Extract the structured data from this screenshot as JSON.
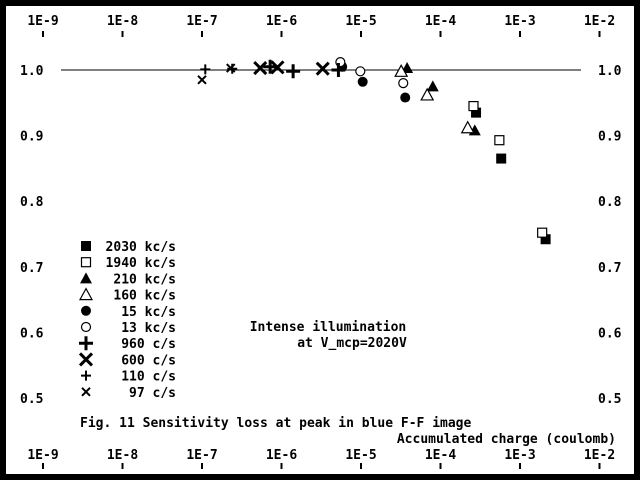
{
  "chart_data": {
    "type": "scatter",
    "title": "Fig. 11  Sensitivity loss at peak in blue F-F image",
    "xlabel": "Accumulated charge  (coulomb)",
    "ylabel": "",
    "xscale": "log",
    "xlim": [
      1e-09,
      0.01
    ],
    "ylim": [
      0.45,
      1.05
    ],
    "x_ticks": [
      "1E-9",
      "1E-8",
      "1E-7",
      "1E-6",
      "1E-5",
      "1E-4",
      "1E-3",
      "1E-2"
    ],
    "y_ticks": [
      "1.0",
      "0.9",
      "0.8",
      "0.7",
      "0.6",
      "0.5"
    ],
    "reference_line": 1.0,
    "grid": false,
    "legend_position": "bottom-left",
    "annotation": [
      "Intense illumination",
      "at V_mcp=2020V"
    ],
    "colors": {
      "background": "#ffffff",
      "frame": "#000000",
      "marker": "#000000"
    },
    "series": [
      {
        "name": "2030 kc/s",
        "marker": "filled-square",
        "x": [
          0.00028,
          0.00058,
          0.0021
        ],
        "y": [
          0.935,
          0.865,
          0.742
        ]
      },
      {
        "name": "1940 kc/s",
        "marker": "open-square",
        "x": [
          0.00026,
          0.00055,
          0.0019
        ],
        "y": [
          0.945,
          0.893,
          0.752
        ]
      },
      {
        "name": "210 kc/s",
        "marker": "filled-triangle",
        "x": [
          3.8e-05,
          8e-05,
          0.00027
        ],
        "y": [
          1.003,
          0.975,
          0.908
        ]
      },
      {
        "name": "160 kc/s",
        "marker": "open-triangle",
        "x": [
          3.2e-05,
          6.8e-05,
          0.00022
        ],
        "y": [
          0.998,
          0.962,
          0.912
        ]
      },
      {
        "name": "15 kc/s",
        "marker": "filled-circle",
        "x": [
          5.8e-06,
          1.05e-05,
          3.6e-05
        ],
        "y": [
          1.005,
          0.982,
          0.958
        ]
      },
      {
        "name": "13 kc/s",
        "marker": "open-circle",
        "x": [
          5.5e-06,
          9.8e-06,
          3.4e-05
        ],
        "y": [
          1.012,
          0.998,
          0.98
        ]
      },
      {
        "name": "960 c/s",
        "marker": "bold-plus",
        "x": [
          7.2e-07,
          1.4e-06,
          5.2e-06
        ],
        "y": [
          1.005,
          0.998,
          1.0
        ]
      },
      {
        "name": "600 c/s",
        "marker": "bold-x",
        "x": [
          5.4e-07,
          8.9e-07,
          3.3e-06
        ],
        "y": [
          1.003,
          1.004,
          1.002
        ]
      },
      {
        "name": "110 c/s",
        "marker": "plus",
        "x": [
          1.1e-07,
          2.4e-07
        ],
        "y": [
          1.001,
          1.002
        ]
      },
      {
        "name": "97 c/s",
        "marker": "x",
        "x": [
          1e-07,
          2.3e-07
        ],
        "y": [
          0.985,
          1.003
        ]
      }
    ]
  }
}
